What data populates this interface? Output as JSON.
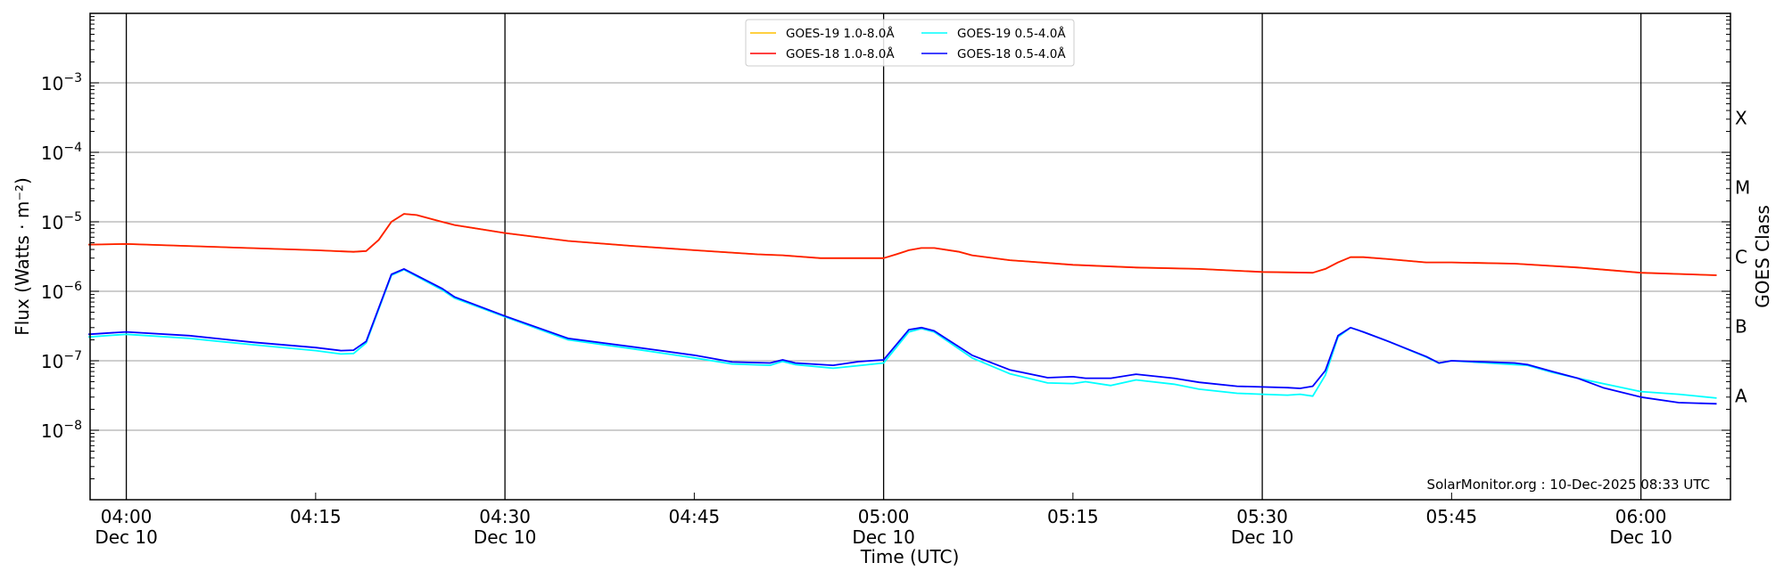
{
  "chart_data": {
    "type": "line",
    "title": "",
    "xlabel": "Time (UTC)",
    "ylabel": "Flux (Watts · m⁻²)",
    "ylabel_right": "GOES Class",
    "yscale": "log",
    "ylim": [
      1e-09,
      0.01
    ],
    "xlim": [
      "03:57",
      "06:07"
    ],
    "grid": "horizontal at each decade; vertical at each half hour",
    "legend_placement": "top-center",
    "credit": "SolarMonitor.org : 10-Dec-2025 08:33 UTC",
    "y_ticks": [
      {
        "value": 1e-08,
        "base": "10",
        "exp": "−8"
      },
      {
        "value": 1e-07,
        "base": "10",
        "exp": "−7"
      },
      {
        "value": 1e-06,
        "base": "10",
        "exp": "−6"
      },
      {
        "value": 1e-05,
        "base": "10",
        "exp": "−5"
      },
      {
        "value": 0.0001,
        "base": "10",
        "exp": "−4"
      },
      {
        "value": 0.001,
        "base": "10",
        "exp": "−3"
      }
    ],
    "x_ticks": [
      {
        "time": "04:00",
        "label": "04:00",
        "sub": "Dec 10",
        "major": true
      },
      {
        "time": "04:15",
        "label": "04:15",
        "sub": "",
        "major": false
      },
      {
        "time": "04:30",
        "label": "04:30",
        "sub": "Dec 10",
        "major": true
      },
      {
        "time": "04:45",
        "label": "04:45",
        "sub": "",
        "major": false
      },
      {
        "time": "05:00",
        "label": "05:00",
        "sub": "Dec 10",
        "major": true
      },
      {
        "time": "05:15",
        "label": "05:15",
        "sub": "",
        "major": false
      },
      {
        "time": "05:30",
        "label": "05:30",
        "sub": "Dec 10",
        "major": true
      },
      {
        "time": "05:45",
        "label": "05:45",
        "sub": "",
        "major": false
      },
      {
        "time": "06:00",
        "label": "06:00",
        "sub": "Dec 10",
        "major": true
      }
    ],
    "goes_classes": [
      {
        "label": "A",
        "value": 3.2e-08
      },
      {
        "label": "B",
        "value": 3.2e-07
      },
      {
        "label": "C",
        "value": 3.2e-06
      },
      {
        "label": "M",
        "value": 3.2e-05
      },
      {
        "label": "X",
        "value": 0.00032
      }
    ],
    "series": [
      {
        "name": "GOES-19 1.0-8.0Å",
        "color": "#ffc000",
        "x": [
          "03:57",
          "04:00",
          "04:15",
          "04:18",
          "04:19",
          "04:20",
          "04:21",
          "04:22",
          "04:23",
          "04:25",
          "04:26",
          "04:30",
          "04:35",
          "04:40",
          "04:45",
          "04:50",
          "04:52",
          "04:55",
          "05:00",
          "05:01",
          "05:02",
          "05:03",
          "05:04",
          "05:06",
          "05:07",
          "05:10",
          "05:15",
          "05:20",
          "05:25",
          "05:30",
          "05:34",
          "05:35",
          "05:36",
          "05:37",
          "05:38",
          "05:40",
          "05:43",
          "05:45",
          "05:50",
          "05:55",
          "06:00",
          "06:06"
        ],
        "y": [
          4.7e-06,
          4.8e-06,
          3.9e-06,
          3.7e-06,
          3.8e-06,
          5.5e-06,
          1e-05,
          1.3e-05,
          1.25e-05,
          1e-05,
          9e-06,
          6.9e-06,
          5.3e-06,
          4.5e-06,
          3.9e-06,
          3.4e-06,
          3.3e-06,
          3e-06,
          3e-06,
          3.4e-06,
          3.9e-06,
          4.2e-06,
          4.2e-06,
          3.7e-06,
          3.3e-06,
          2.8e-06,
          2.4e-06,
          2.2e-06,
          2.1e-06,
          1.9e-06,
          1.85e-06,
          2.1e-06,
          2.6e-06,
          3.1e-06,
          3.1e-06,
          2.9e-06,
          2.6e-06,
          2.6e-06,
          2.5e-06,
          2.2e-06,
          1.85e-06,
          1.7e-06
        ]
      },
      {
        "name": "GOES-18 1.0-8.0Å",
        "color": "#ff0000",
        "x": [
          "03:57",
          "04:00",
          "04:15",
          "04:18",
          "04:19",
          "04:20",
          "04:21",
          "04:22",
          "04:23",
          "04:25",
          "04:26",
          "04:30",
          "04:35",
          "04:40",
          "04:45",
          "04:50",
          "04:52",
          "04:55",
          "05:00",
          "05:01",
          "05:02",
          "05:03",
          "05:04",
          "05:06",
          "05:07",
          "05:10",
          "05:15",
          "05:20",
          "05:25",
          "05:30",
          "05:34",
          "05:35",
          "05:36",
          "05:37",
          "05:38",
          "05:40",
          "05:43",
          "05:45",
          "05:50",
          "05:55",
          "06:00",
          "06:06"
        ],
        "y": [
          4.7e-06,
          4.8e-06,
          3.9e-06,
          3.7e-06,
          3.8e-06,
          5.5e-06,
          1e-05,
          1.3e-05,
          1.25e-05,
          1e-05,
          9e-06,
          6.9e-06,
          5.3e-06,
          4.5e-06,
          3.9e-06,
          3.4e-06,
          3.3e-06,
          3e-06,
          3e-06,
          3.4e-06,
          3.9e-06,
          4.2e-06,
          4.2e-06,
          3.7e-06,
          3.3e-06,
          2.8e-06,
          2.4e-06,
          2.2e-06,
          2.1e-06,
          1.9e-06,
          1.85e-06,
          2.1e-06,
          2.6e-06,
          3.1e-06,
          3.1e-06,
          2.9e-06,
          2.6e-06,
          2.6e-06,
          2.5e-06,
          2.2e-06,
          1.85e-06,
          1.7e-06
        ]
      },
      {
        "name": "GOES-19 0.5-4.0Å",
        "color": "#00ffff",
        "x": [
          "03:57",
          "04:00",
          "04:05",
          "04:10",
          "04:15",
          "04:17",
          "04:18",
          "04:19",
          "04:21",
          "04:22",
          "04:25",
          "04:26",
          "04:30",
          "04:35",
          "04:40",
          "04:45",
          "04:48",
          "04:51",
          "04:52",
          "04:53",
          "04:56",
          "04:58",
          "05:00",
          "05:02",
          "05:03",
          "05:04",
          "05:07",
          "05:10",
          "05:13",
          "05:15",
          "05:16",
          "05:18",
          "05:20",
          "05:23",
          "05:25",
          "05:28",
          "05:30",
          "05:32",
          "05:33",
          "05:34",
          "05:35",
          "05:36",
          "05:37",
          "05:38",
          "05:40",
          "05:43",
          "05:44",
          "05:45",
          "05:50",
          "05:51",
          "05:53",
          "05:55",
          "05:57",
          "06:00",
          "06:03",
          "06:06"
        ],
        "y": [
          2.2e-07,
          2.4e-07,
          2.1e-07,
          1.7e-07,
          1.4e-07,
          1.25e-07,
          1.27e-07,
          1.8e-07,
          1.7e-06,
          2.05e-06,
          1.05e-06,
          8e-07,
          4.3e-07,
          2e-07,
          1.5e-07,
          1.1e-07,
          9e-08,
          8.6e-08,
          9.8e-08,
          8.8e-08,
          7.8e-08,
          8.5e-08,
          9.3e-08,
          2.6e-07,
          2.9e-07,
          2.6e-07,
          1.1e-07,
          6.5e-08,
          4.8e-08,
          4.7e-08,
          5e-08,
          4.4e-08,
          5.3e-08,
          4.6e-08,
          3.9e-08,
          3.4e-08,
          3.3e-08,
          3.2e-08,
          3.3e-08,
          3.1e-08,
          6.2e-08,
          2.2e-07,
          3e-07,
          2.6e-07,
          1.9e-07,
          1.13e-07,
          9.2e-08,
          1e-07,
          8.8e-08,
          8.6e-08,
          6.8e-08,
          5.6e-08,
          4.7e-08,
          3.6e-08,
          3.3e-08,
          2.9e-08
        ]
      },
      {
        "name": "GOES-18 0.5-4.0Å",
        "color": "#0000ff",
        "x": [
          "03:57",
          "04:00",
          "04:05",
          "04:10",
          "04:15",
          "04:17",
          "04:18",
          "04:19",
          "04:21",
          "04:22",
          "04:25",
          "04:26",
          "04:30",
          "04:35",
          "04:40",
          "04:45",
          "04:48",
          "04:51",
          "04:52",
          "04:53",
          "04:56",
          "04:58",
          "05:00",
          "05:02",
          "05:03",
          "05:04",
          "05:07",
          "05:10",
          "05:13",
          "05:15",
          "05:16",
          "05:18",
          "05:20",
          "05:23",
          "05:25",
          "05:28",
          "05:30",
          "05:32",
          "05:33",
          "05:34",
          "05:35",
          "05:36",
          "05:37",
          "05:38",
          "05:40",
          "05:43",
          "05:44",
          "05:45",
          "05:50",
          "05:51",
          "05:53",
          "05:55",
          "05:57",
          "06:00",
          "06:03",
          "06:06"
        ],
        "y": [
          2.4e-07,
          2.6e-07,
          2.3e-07,
          1.85e-07,
          1.55e-07,
          1.4e-07,
          1.42e-07,
          1.9e-07,
          1.75e-06,
          2.1e-06,
          1.1e-06,
          8.3e-07,
          4.4e-07,
          2.1e-07,
          1.6e-07,
          1.2e-07,
          9.6e-08,
          9.3e-08,
          1.03e-07,
          9.3e-08,
          8.6e-08,
          9.7e-08,
          1.03e-07,
          2.8e-07,
          3e-07,
          2.7e-07,
          1.2e-07,
          7.4e-08,
          5.7e-08,
          5.9e-08,
          5.6e-08,
          5.6e-08,
          6.4e-08,
          5.6e-08,
          4.9e-08,
          4.3e-08,
          4.2e-08,
          4.1e-08,
          4e-08,
          4.3e-08,
          7.2e-08,
          2.3e-07,
          3e-07,
          2.6e-07,
          1.9e-07,
          1.15e-07,
          9.3e-08,
          1e-07,
          9.3e-08,
          8.8e-08,
          7e-08,
          5.6e-08,
          4.1e-08,
          3e-08,
          2.5e-08,
          2.4e-08
        ]
      }
    ]
  }
}
